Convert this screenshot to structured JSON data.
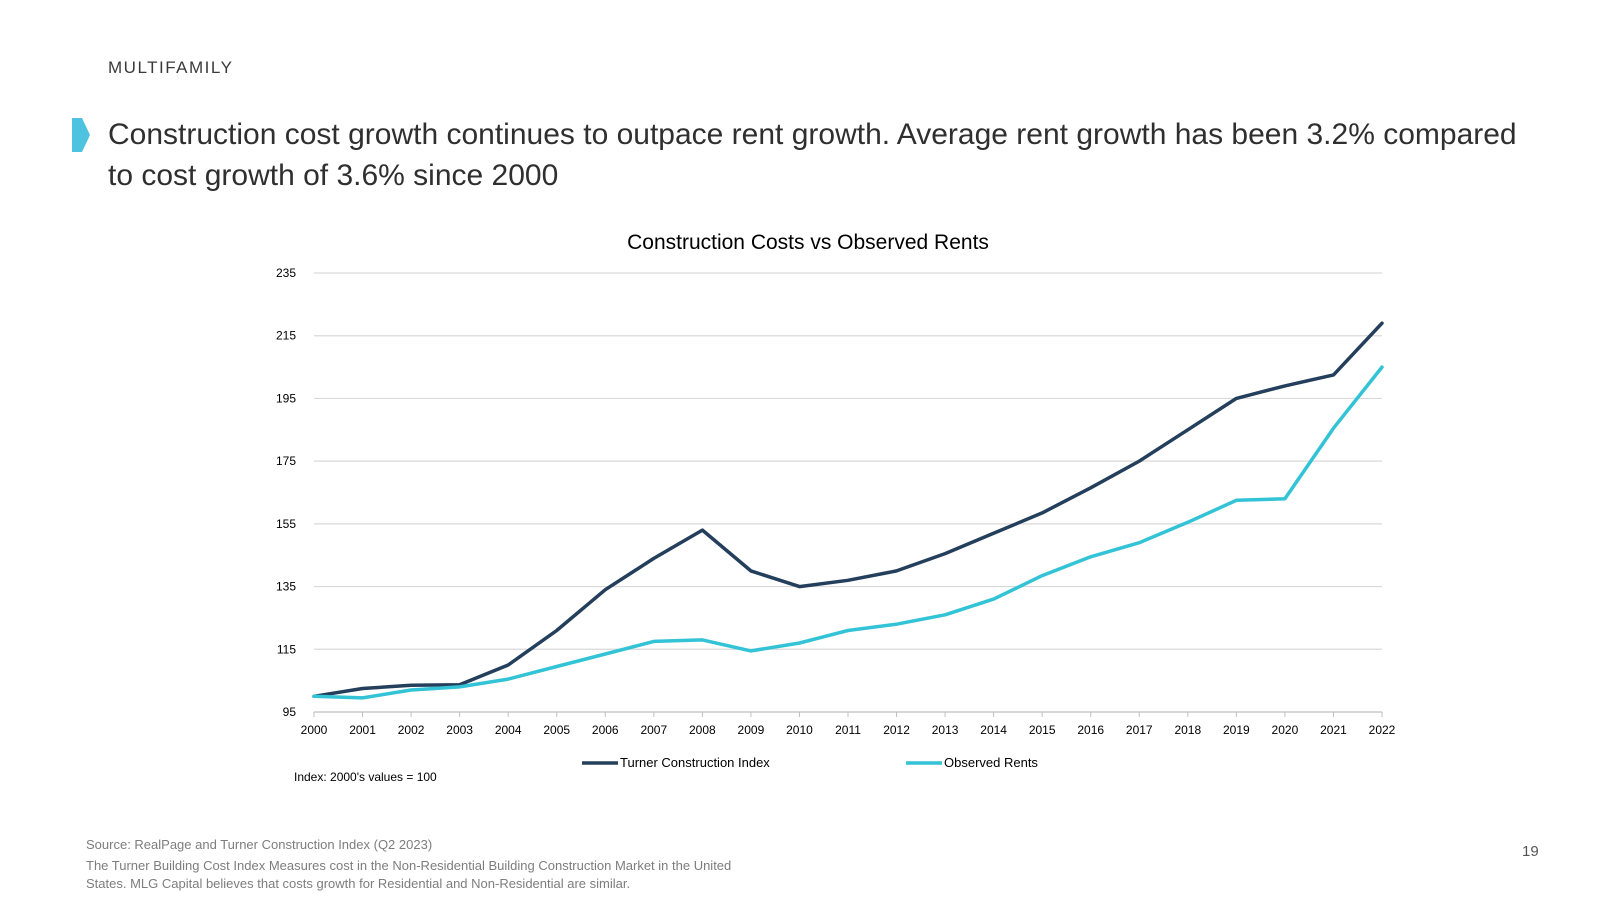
{
  "header": {
    "section_label": "MULTIFAMILY",
    "headline": "Construction cost growth continues to outpace rent growth. Average rent growth has been 3.2% compared to cost growth of 3.6% since 2000"
  },
  "colors": {
    "accent": "#4dc3e0",
    "turner": "#243f5c",
    "rents": "#33c3d6",
    "grid": "#d9d9d9"
  },
  "chart_data": {
    "type": "line",
    "title": "Construction Costs vs Observed Rents",
    "xlabel": "",
    "ylabel": "",
    "ylim": [
      95,
      235
    ],
    "yticks": [
      "95",
      "115",
      "135",
      "155",
      "175",
      "195",
      "215",
      "235"
    ],
    "x": [
      "2000",
      "2001",
      "2002",
      "2003",
      "2004",
      "2005",
      "2006",
      "2007",
      "2008",
      "2009",
      "2010",
      "2011",
      "2012",
      "2013",
      "2014",
      "2015",
      "2016",
      "2017",
      "2018",
      "2019",
      "2020",
      "2021",
      "2022"
    ],
    "series": [
      {
        "name": "Turner Construction Index",
        "color": "#243f5c",
        "values": [
          100,
          102.5,
          103.5,
          103.7,
          110,
          121,
          134,
          144,
          153,
          140,
          135,
          137,
          140,
          145.5,
          152,
          158.5,
          166.5,
          175,
          185,
          195,
          199,
          202.5,
          219
        ]
      },
      {
        "name": "Observed Rents",
        "color": "#33c3d6",
        "values": [
          100,
          99.5,
          102,
          103,
          105.5,
          109.5,
          113.5,
          117.5,
          118,
          114.5,
          117,
          121,
          123,
          126,
          131,
          138.5,
          144.5,
          149,
          155.5,
          162.5,
          163,
          185.5,
          205
        ]
      }
    ],
    "legend_position": "bottom",
    "grid": true,
    "note": "Index: 2000's values = 100"
  },
  "footer": {
    "source_line": "Source: RealPage and Turner Construction Index (Q2 2023)",
    "desc_line1": "The Turner Building Cost Index Measures cost in the Non-Residential Building Construction Market in the United",
    "desc_line2": "States. MLG Capital believes that costs growth for Residential and Non-Residential are similar.",
    "page_number": "19"
  }
}
